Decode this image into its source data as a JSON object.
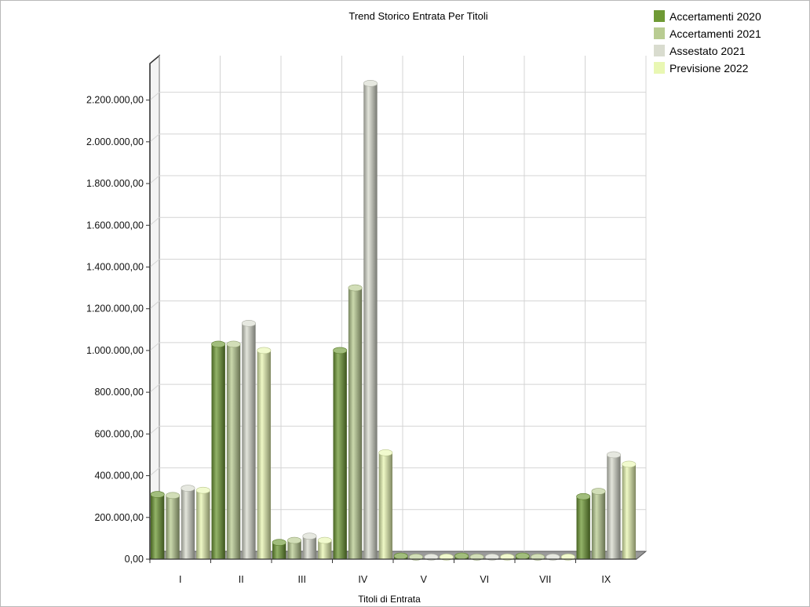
{
  "chart_data": {
    "type": "bar",
    "title": "Trend Storico Entrata Per Titoli",
    "xlabel": "Titoli di Entrata",
    "ylabel": "",
    "ylim": [
      0,
      2300000
    ],
    "yticks": [
      0,
      200000,
      400000,
      600000,
      800000,
      1000000,
      1200000,
      1400000,
      1600000,
      1800000,
      2000000,
      2200000
    ],
    "ytick_labels": [
      "0,00",
      "200.000,00",
      "400.000,00",
      "600.000,00",
      "800.000,00",
      "1.000.000,00",
      "1.200.000,00",
      "1.400.000,00",
      "1.600.000,00",
      "1.800.000,00",
      "2.000.000,00",
      "2.200.000,00"
    ],
    "categories": [
      "I",
      "II",
      "III",
      "IV",
      "V",
      "VI",
      "VII",
      "IX"
    ],
    "series": [
      {
        "name": "Accertamenti 2020",
        "color": "#6f9a35",
        "values": [
          310000,
          1030000,
          80000,
          1000000,
          15000,
          15000,
          15000,
          300000
        ]
      },
      {
        "name": "Accertamenti 2021",
        "color": "#b9cc92",
        "values": [
          305000,
          1030000,
          90000,
          1300000,
          10000,
          10000,
          10000,
          325000
        ]
      },
      {
        "name": "Assestato 2021",
        "color": "#d9dccf",
        "values": [
          340000,
          1130000,
          110000,
          2280000,
          10000,
          10000,
          10000,
          500000
        ]
      },
      {
        "name": "Previsione 2022",
        "color": "#e9f7b3",
        "values": [
          330000,
          1000000,
          90000,
          510000,
          10000,
          10000,
          10000,
          455000
        ]
      }
    ],
    "grid": true,
    "legend_position": "top-right"
  }
}
